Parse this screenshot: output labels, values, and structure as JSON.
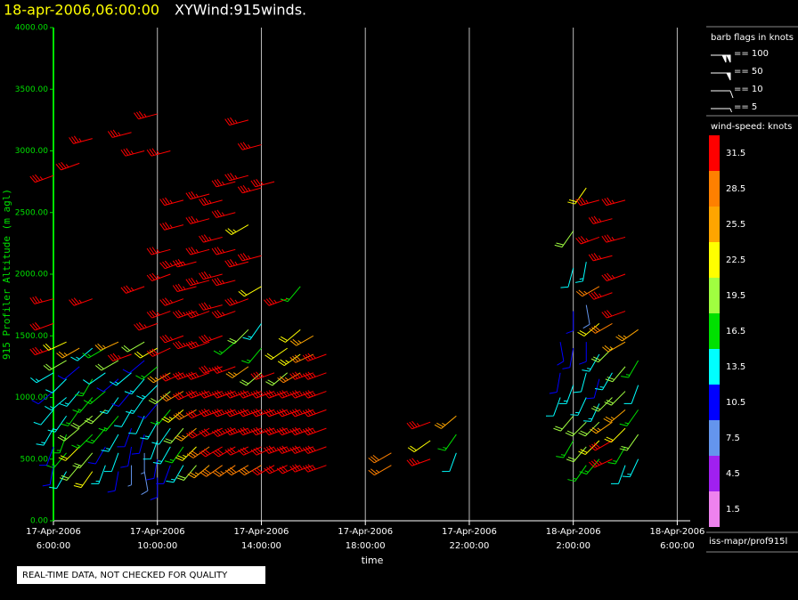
{
  "chart_data": {
    "type": "barb",
    "title": "18-apr-2006,06:00:00",
    "subtitle": "XYWind:915winds.",
    "y_label": "915 Profiler Altitude (m agl)",
    "x_label": "time",
    "ylim": [
      0,
      4000
    ],
    "yticks": [
      {
        "value": 0,
        "label": "0.00"
      },
      {
        "value": 500,
        "label": "500.00"
      },
      {
        "value": 1000,
        "label": "1000.00"
      },
      {
        "value": 1500,
        "label": "1500.00"
      },
      {
        "value": 2000,
        "label": "2000.00"
      },
      {
        "value": 2500,
        "label": "2500.00"
      },
      {
        "value": 3000,
        "label": "3000.00"
      },
      {
        "value": 3500,
        "label": "3500.00"
      },
      {
        "value": 4000,
        "label": "4000.00"
      }
    ],
    "xlim": [
      "17-Apr-2006 6:00:00",
      "18-Apr-2006 6:30:00"
    ],
    "xticks": [
      "17-Apr-2006 6:00:00",
      "17-Apr-2006 10:00:00",
      "17-Apr-2006 14:00:00",
      "17-Apr-2006 18:00:00",
      "17-Apr-2006 22:00:00",
      "18-Apr-2006 2:00:00",
      "18-Apr-2006 6:00:00"
    ],
    "grid": true,
    "barb_legend": {
      "title": "barb flags in knots",
      "entries": [
        {
          "value": 100,
          "label": "== 100"
        },
        {
          "value": 50,
          "label": "== 50"
        },
        {
          "value": 10,
          "label": "== 10"
        },
        {
          "value": 5,
          "label": "== 5"
        }
      ]
    },
    "colorbar": {
      "title": "wind-speed: knots",
      "levels": [
        31.5,
        28.5,
        25.5,
        22.5,
        19.5,
        16.5,
        13.5,
        10.5,
        7.5,
        4.5,
        1.5
      ],
      "colors": [
        "#ff0000",
        "#ff8000",
        "#ffa500",
        "#ffff00",
        "#a0ff40",
        "#00e000",
        "#00ffff",
        "#0000ff",
        "#6495ed",
        "#a020f0",
        "#ee82ee"
      ]
    },
    "source": "iss-mapr/prof915l",
    "note": "REAL-TIME DATA, NOT CHECKED FOR QUALITY",
    "profiles": [
      {
        "x": "17-Apr-2006 6:00:00",
        "altitude": [
          450,
          600,
          750,
          900,
          1050,
          1200,
          1400,
          1600,
          1800,
          2800
        ],
        "speed": [
          9,
          11,
          13,
          12,
          10,
          14,
          33,
          32,
          34,
          33
        ],
        "direction": [
          190,
          200,
          210,
          220,
          230,
          240,
          250,
          250,
          255,
          250
        ]
      },
      {
        "x": "17-Apr-2006 6:30:00",
        "altitude": [
          400,
          550,
          700,
          850,
          1000,
          1150,
          1300,
          1450
        ],
        "speed": [
          12,
          15,
          17,
          14,
          13,
          12,
          18,
          21
        ],
        "direction": [
          210,
          220,
          200,
          215,
          230,
          225,
          240,
          245
        ]
      },
      {
        "x": "17-Apr-2006 7:00:00",
        "altitude": [
          450,
          600,
          750,
          900,
          1050,
          1250,
          1400,
          2900
        ],
        "speed": [
          20,
          22,
          19,
          16,
          14,
          11,
          24,
          33
        ],
        "direction": [
          220,
          225,
          230,
          215,
          220,
          230,
          240,
          250
        ]
      },
      {
        "x": "17-Apr-2006 7:30:00",
        "altitude": [
          400,
          550,
          700,
          850,
          1000,
          1150,
          1400,
          1800,
          3100
        ],
        "speed": [
          21,
          18,
          16,
          20,
          17,
          15,
          14,
          33,
          35
        ],
        "direction": [
          215,
          220,
          225,
          230,
          220,
          210,
          230,
          250,
          255
        ]
      },
      {
        "x": "17-Apr-2006 8:00:00",
        "altitude": [
          450,
          600,
          750,
          900,
          1050,
          1200,
          1400
        ],
        "speed": [
          13,
          11,
          17,
          19,
          15,
          12,
          16
        ],
        "direction": [
          200,
          210,
          220,
          225,
          230,
          235,
          240
        ]
      },
      {
        "x": "17-Apr-2006 8:30:00",
        "altitude": [
          400,
          550,
          700,
          850,
          1000,
          1150,
          1300,
          1450
        ],
        "speed": [
          9,
          12,
          14,
          16,
          13,
          10,
          18,
          24
        ],
        "direction": [
          190,
          200,
          210,
          220,
          215,
          230,
          240,
          245
        ]
      },
      {
        "x": "17-Apr-2006 9:00:00",
        "altitude": [
          450,
          600,
          750,
          900,
          1050,
          1200,
          1350,
          3150
        ],
        "speed": [
          7,
          9,
          10,
          12,
          11,
          14,
          33,
          34
        ],
        "direction": [
          180,
          190,
          200,
          210,
          220,
          230,
          250,
          255
        ]
      },
      {
        "x": "17-Apr-2006 9:30:00",
        "altitude": [
          400,
          550,
          700,
          850,
          1000,
          1150,
          1300,
          1450,
          1900,
          3000
        ],
        "speed": [
          8,
          6,
          10,
          12,
          14,
          13,
          11,
          20,
          33,
          34
        ],
        "direction": [
          170,
          180,
          195,
          205,
          215,
          220,
          230,
          240,
          250,
          255
        ]
      },
      {
        "x": "17-Apr-2006 10:00:00",
        "altitude": [
          350,
          500,
          650,
          800,
          950,
          1100,
          1250,
          1400,
          1600,
          3300
        ],
        "speed": [
          11,
          9,
          12,
          14,
          10,
          13,
          15,
          22,
          33,
          33
        ],
        "direction": [
          180,
          190,
          200,
          210,
          220,
          225,
          230,
          240,
          250,
          255
        ]
      },
      {
        "x": "17-Apr-2006 10:30:00",
        "altitude": [
          450,
          600,
          750,
          900,
          1050,
          1200,
          1400,
          1700,
          2000,
          2200,
          3000
        ],
        "speed": [
          10,
          13,
          12,
          15,
          18,
          24,
          31,
          33,
          34,
          33,
          34
        ],
        "direction": [
          200,
          210,
          215,
          220,
          230,
          240,
          245,
          250,
          250,
          255,
          255
        ]
      },
      {
        "x": "17-Apr-2006 11:00:00",
        "altitude": [
          450,
          600,
          750,
          900,
          1050,
          1200,
          1500,
          1800,
          2100,
          2400,
          2600
        ],
        "speed": [
          14,
          16,
          20,
          23,
          29,
          32,
          33,
          34,
          33,
          33,
          34
        ],
        "direction": [
          210,
          215,
          220,
          230,
          240,
          245,
          250,
          250,
          250,
          255,
          255
        ]
      },
      {
        "x": "17-Apr-2006 11:30:00",
        "altitude": [
          450,
          600,
          750,
          900,
          1050,
          1200,
          1450,
          1700,
          1900,
          2100
        ],
        "speed": [
          19,
          23,
          26,
          29,
          32,
          33,
          34,
          33,
          33,
          34
        ],
        "direction": [
          220,
          225,
          230,
          240,
          245,
          250,
          250,
          250,
          255,
          255
        ]
      },
      {
        "x": "17-Apr-2006 12:00:00",
        "altitude": [
          450,
          600,
          750,
          900,
          1050,
          1200,
          1450,
          1700,
          1950,
          2200,
          2450,
          2650
        ],
        "speed": [
          26,
          29,
          31,
          32,
          33,
          34,
          33,
          33,
          34,
          34,
          33,
          33
        ],
        "direction": [
          230,
          235,
          240,
          245,
          250,
          250,
          250,
          250,
          255,
          255,
          255,
          255
        ]
      },
      {
        "x": "17-Apr-2006 12:30:00",
        "altitude": [
          450,
          600,
          750,
          900,
          1050,
          1250,
          1500,
          1750,
          2000,
          2300,
          2600
        ],
        "speed": [
          28,
          30,
          31,
          33,
          34,
          33,
          34,
          33,
          34,
          34,
          33
        ],
        "direction": [
          235,
          240,
          245,
          250,
          250,
          250,
          250,
          255,
          255,
          255,
          255
        ]
      },
      {
        "x": "17-Apr-2006 13:00:00",
        "altitude": [
          450,
          600,
          750,
          900,
          1050,
          1250,
          1450,
          1700,
          1950,
          2200,
          2500,
          2750
        ],
        "speed": [
          27,
          30,
          33,
          33,
          34,
          32,
          17,
          33,
          34,
          34,
          33,
          34
        ],
        "direction": [
          235,
          240,
          245,
          250,
          250,
          250,
          230,
          250,
          255,
          255,
          255,
          255
        ]
      },
      {
        "x": "17-Apr-2006 13:30:00",
        "altitude": [
          450,
          600,
          750,
          900,
          1050,
          1250,
          1550,
          1800,
          2100,
          2400,
          2800,
          3250
        ],
        "speed": [
          29,
          31,
          33,
          33,
          34,
          24,
          20,
          33,
          34,
          23,
          34,
          34
        ],
        "direction": [
          240,
          245,
          250,
          250,
          250,
          235,
          225,
          250,
          255,
          240,
          255,
          255
        ]
      },
      {
        "x": "17-Apr-2006 14:00:00",
        "altitude": [
          450,
          600,
          750,
          900,
          1050,
          1200,
          1400,
          1600,
          1900,
          2150,
          2700,
          3050
        ],
        "speed": [
          28,
          32,
          33,
          34,
          33,
          20,
          15,
          14,
          22,
          33,
          33,
          33
        ],
        "direction": [
          240,
          245,
          250,
          250,
          250,
          230,
          220,
          215,
          240,
          255,
          255,
          255
        ]
      },
      {
        "x": "17-Apr-2006 14:30:00",
        "altitude": [
          450,
          600,
          750,
          900,
          1050,
          1200,
          2750
        ],
        "speed": [
          30,
          32,
          33,
          34,
          33,
          34,
          34
        ],
        "direction": [
          240,
          245,
          250,
          250,
          250,
          250,
          255
        ]
      },
      {
        "x": "17-Apr-2006 15:00:00",
        "altitude": [
          450,
          600,
          750,
          900,
          1050,
          1200,
          1400,
          1800
        ],
        "speed": [
          31,
          33,
          34,
          33,
          34,
          19,
          22,
          33
        ],
        "direction": [
          245,
          250,
          250,
          250,
          250,
          230,
          235,
          250
        ]
      },
      {
        "x": "17-Apr-2006 15:30:00",
        "altitude": [
          450,
          600,
          750,
          900,
          1050,
          1200,
          1350,
          1550,
          1900
        ],
        "speed": [
          32,
          33,
          33,
          34,
          33,
          27,
          23,
          21,
          15
        ],
        "direction": [
          245,
          250,
          250,
          250,
          250,
          240,
          235,
          230,
          220
        ]
      },
      {
        "x": "17-Apr-2006 16:00:00",
        "altitude": [
          450,
          600,
          750,
          900,
          1050,
          1200,
          1350,
          1500
        ],
        "speed": [
          33,
          34,
          33,
          34,
          33,
          33,
          28,
          24
        ],
        "direction": [
          250,
          250,
          250,
          250,
          250,
          250,
          245,
          240
        ]
      },
      {
        "x": "17-Apr-2006 16:30:00",
        "altitude": [
          450,
          600,
          750,
          900,
          1050,
          1200,
          1350
        ],
        "speed": [
          33,
          34,
          33,
          34,
          33,
          34,
          33
        ],
        "direction": [
          250,
          250,
          250,
          250,
          250,
          250,
          250
        ]
      },
      {
        "x": "17-Apr-2006 19:00:00",
        "altitude": [
          450,
          550
        ],
        "speed": [
          27,
          28
        ],
        "direction": [
          240,
          240
        ]
      },
      {
        "x": "17-Apr-2006 20:30:00",
        "altitude": [
          500,
          650,
          800
        ],
        "speed": [
          33,
          22,
          33
        ],
        "direction": [
          250,
          235,
          250
        ]
      },
      {
        "x": "17-Apr-2006 21:30:00",
        "altitude": [
          550,
          700,
          850
        ],
        "speed": [
          12,
          15,
          24
        ],
        "direction": [
          200,
          215,
          230
        ]
      },
      {
        "x": "18-Apr-2006 1:30:00",
        "altitude": [
          1000,
          1200,
          1450
        ],
        "speed": [
          12,
          11,
          10
        ],
        "direction": [
          200,
          190,
          170
        ]
      },
      {
        "x": "18-Apr-2006 2:00:00",
        "altitude": [
          650,
          850,
          1100,
          1400,
          1700,
          2050,
          2350
        ],
        "speed": [
          17,
          19,
          13,
          11,
          9,
          12,
          19
        ],
        "direction": [
          210,
          220,
          200,
          190,
          180,
          195,
          215
        ]
      },
      {
        "x": "18-Apr-2006 2:30:00",
        "altitude": [
          450,
          600,
          800,
          1000,
          1200,
          1450,
          1750,
          2100,
          2700
        ],
        "speed": [
          15,
          18,
          20,
          14,
          12,
          10,
          8,
          13,
          21
        ],
        "direction": [
          215,
          220,
          225,
          205,
          195,
          180,
          170,
          190,
          215
        ]
      },
      {
        "x": "18-Apr-2006 3:00:00",
        "altitude": [
          500,
          650,
          800,
          950,
          1150,
          1350,
          1600,
          1900,
          2300,
          2600
        ],
        "speed": [
          17,
          21,
          19,
          13,
          11,
          14,
          22,
          27,
          33,
          34
        ],
        "direction": [
          220,
          225,
          225,
          205,
          195,
          210,
          230,
          240,
          250,
          255
        ]
      },
      {
        "x": "18-Apr-2006 3:30:00",
        "altitude": [
          500,
          650,
          800,
          1000,
          1200,
          1400,
          1600,
          1850,
          2150,
          2450
        ],
        "speed": [
          33,
          31,
          24,
          19,
          14,
          20,
          28,
          33,
          34,
          33
        ],
        "direction": [
          245,
          240,
          235,
          225,
          210,
          225,
          240,
          250,
          255,
          255
        ]
      },
      {
        "x": "18-Apr-2006 4:00:00",
        "altitude": [
          450,
          600,
          750,
          900,
          1050,
          1250,
          1450,
          1700,
          2000,
          2300,
          2600
        ],
        "speed": [
          12,
          16,
          21,
          24,
          20,
          18,
          26,
          32,
          33,
          34,
          33
        ],
        "direction": [
          200,
          210,
          225,
          230,
          225,
          220,
          240,
          250,
          250,
          255,
          255
        ]
      },
      {
        "x": "18-Apr-2006 4:30:00",
        "altitude": [
          500,
          700,
          900,
          1100,
          1300,
          1550
        ],
        "speed": [
          14,
          18,
          16,
          12,
          15,
          24
        ],
        "direction": [
          205,
          215,
          215,
          200,
          210,
          235
        ]
      }
    ]
  }
}
